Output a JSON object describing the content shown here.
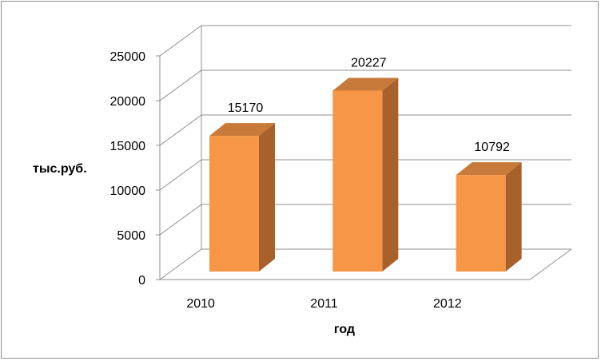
{
  "chart_data": {
    "type": "bar",
    "categories": [
      "2010",
      "2011",
      "2012"
    ],
    "values": [
      15170,
      20227,
      10792
    ],
    "data_labels": [
      "15170",
      "20227",
      "10792"
    ],
    "ylabel": "тыс.руб.",
    "xlabel": "год",
    "ylim": [
      0,
      25000
    ],
    "yticks": [
      "0",
      "5000",
      "10000",
      "15000",
      "20000",
      "25000"
    ],
    "grid": true,
    "legend": "none",
    "style": "3d-column",
    "colors": {
      "bar_front": "#F79646",
      "bar_top": "#C87A3A",
      "bar_side": "#A8612A",
      "grid": "#8c8c8c"
    }
  }
}
